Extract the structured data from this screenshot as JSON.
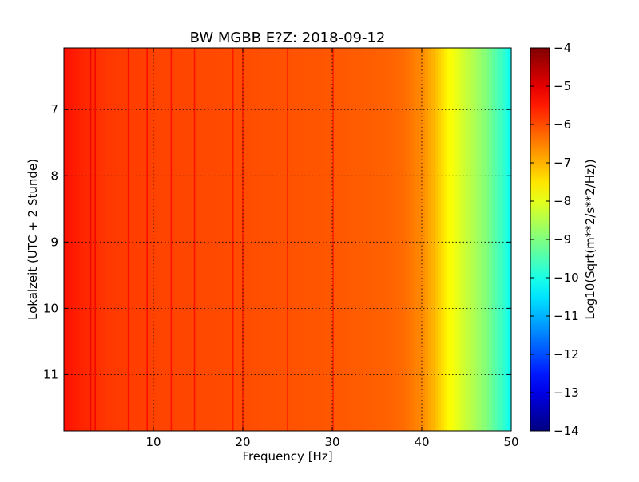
{
  "chart_data": {
    "type": "heatmap",
    "title": "BW MGBB E?Z: 2018-09-12",
    "xlabel": "Frequency [Hz]",
    "ylabel": "Lokalzeit (UTC + 2 Stunde)",
    "colorbar_label": "Log10(Sqrt(m**2/s**2/Hz))",
    "colormap": "jet",
    "xlim": [
      0,
      50
    ],
    "ylim": [
      6.07,
      11.85
    ],
    "y_inverted": true,
    "grid": true,
    "x_ticks": [
      10,
      20,
      30,
      40,
      50
    ],
    "x_tick_labels": [
      "10",
      "20",
      "30",
      "40",
      "50"
    ],
    "y_ticks": [
      7,
      8,
      9,
      10,
      11
    ],
    "y_tick_labels": [
      "7",
      "8",
      "9",
      "10",
      "11"
    ],
    "colorbar_range": [
      -14,
      -4
    ],
    "colorbar_ticks": [
      -4,
      -5,
      -6,
      -7,
      -8,
      -9,
      -10,
      -11,
      -12,
      -13,
      -14
    ],
    "colorbar_tick_labels": [
      "−4",
      "−5",
      "−6",
      "−7",
      "−8",
      "−9",
      "−10",
      "−11",
      "−12",
      "−13",
      "−14"
    ],
    "spectrum_profile": {
      "frequency_hz": [
        0,
        2,
        5,
        10,
        20,
        30,
        36,
        38,
        40,
        41,
        42,
        43,
        44,
        45,
        46,
        47,
        48,
        49,
        50
      ],
      "log10_amplitude": [
        -5.4,
        -5.6,
        -5.8,
        -5.9,
        -6.0,
        -6.1,
        -6.2,
        -6.3,
        -6.6,
        -6.9,
        -7.3,
        -7.7,
        -8.0,
        -8.3,
        -8.6,
        -8.9,
        -9.3,
        -9.7,
        -10.2
      ]
    },
    "spectral_lines_hz": [
      3.0,
      3.5,
      7.2,
      9.3,
      12.0,
      14.6,
      18.9,
      20.0,
      25.0,
      30.1
    ]
  }
}
